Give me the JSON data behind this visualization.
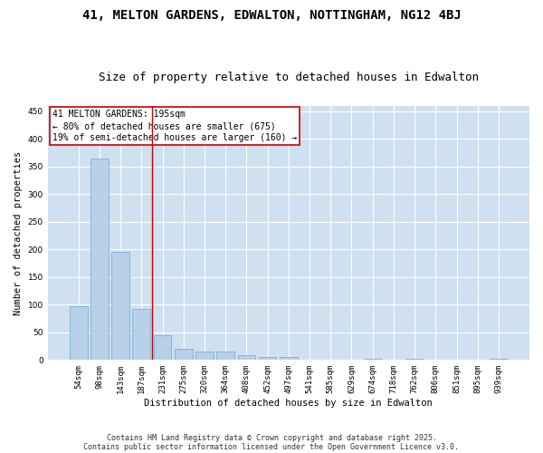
{
  "title": "41, MELTON GARDENS, EDWALTON, NOTTINGHAM, NG12 4BJ",
  "subtitle": "Size of property relative to detached houses in Edwalton",
  "xlabel": "Distribution of detached houses by size in Edwalton",
  "ylabel": "Number of detached properties",
  "categories": [
    "54sqm",
    "98sqm",
    "143sqm",
    "187sqm",
    "231sqm",
    "275sqm",
    "320sqm",
    "364sqm",
    "408sqm",
    "452sqm",
    "497sqm",
    "541sqm",
    "585sqm",
    "629sqm",
    "674sqm",
    "718sqm",
    "762sqm",
    "806sqm",
    "851sqm",
    "895sqm",
    "939sqm"
  ],
  "values": [
    97,
    365,
    196,
    93,
    45,
    20,
    16,
    16,
    8,
    6,
    5,
    0,
    0,
    0,
    3,
    0,
    3,
    0,
    0,
    0,
    3
  ],
  "bar_color": "#b8d0e8",
  "bar_edgecolor": "#6aaad4",
  "background_color": "#cfe0f0",
  "grid_color": "#ffffff",
  "fig_background": "#ffffff",
  "annotation_text": "41 MELTON GARDENS: 195sqm\n← 80% of detached houses are smaller (675)\n19% of semi-detached houses are larger (160) →",
  "annotation_box_edgecolor": "#cc0000",
  "vline_x": 3.5,
  "vline_color": "#cc0000",
  "ylim": [
    0,
    460
  ],
  "yticks": [
    0,
    50,
    100,
    150,
    200,
    250,
    300,
    350,
    400,
    450
  ],
  "footnote_line1": "Contains HM Land Registry data © Crown copyright and database right 2025.",
  "footnote_line2": "Contains public sector information licensed under the Open Government Licence v3.0.",
  "title_fontsize": 10,
  "subtitle_fontsize": 9,
  "axis_label_fontsize": 7.5,
  "tick_fontsize": 6.5,
  "annotation_fontsize": 7,
  "footnote_fontsize": 6
}
